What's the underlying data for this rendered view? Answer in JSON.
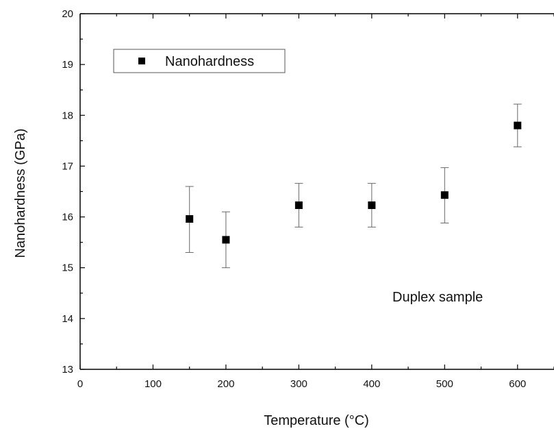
{
  "chart_data": {
    "type": "scatter",
    "xlabel": "Temperature (°C)",
    "ylabel": "Nanohardness (GPa)",
    "xlim": [
      0,
      650
    ],
    "ylim": [
      13,
      20
    ],
    "xticks": [
      0,
      100,
      200,
      300,
      400,
      500,
      600
    ],
    "yticks": [
      13,
      14,
      15,
      16,
      17,
      18,
      19,
      20
    ],
    "grid": false,
    "legend_position": "top-left",
    "series": [
      {
        "name": "Nanohardness",
        "marker": "square",
        "color": "#000000",
        "points": [
          {
            "x": 150,
            "y": 15.96,
            "err_low": 15.3,
            "err_high": 16.6
          },
          {
            "x": 200,
            "y": 15.55,
            "err_low": 15.0,
            "err_high": 16.1
          },
          {
            "x": 300,
            "y": 16.23,
            "err_low": 15.8,
            "err_high": 16.66
          },
          {
            "x": 400,
            "y": 16.23,
            "err_low": 15.8,
            "err_high": 16.66
          },
          {
            "x": 500,
            "y": 16.43,
            "err_low": 15.88,
            "err_high": 16.97
          },
          {
            "x": 600,
            "y": 17.8,
            "err_low": 17.38,
            "err_high": 18.22
          }
        ]
      }
    ],
    "annotation": "Duplex sample"
  }
}
